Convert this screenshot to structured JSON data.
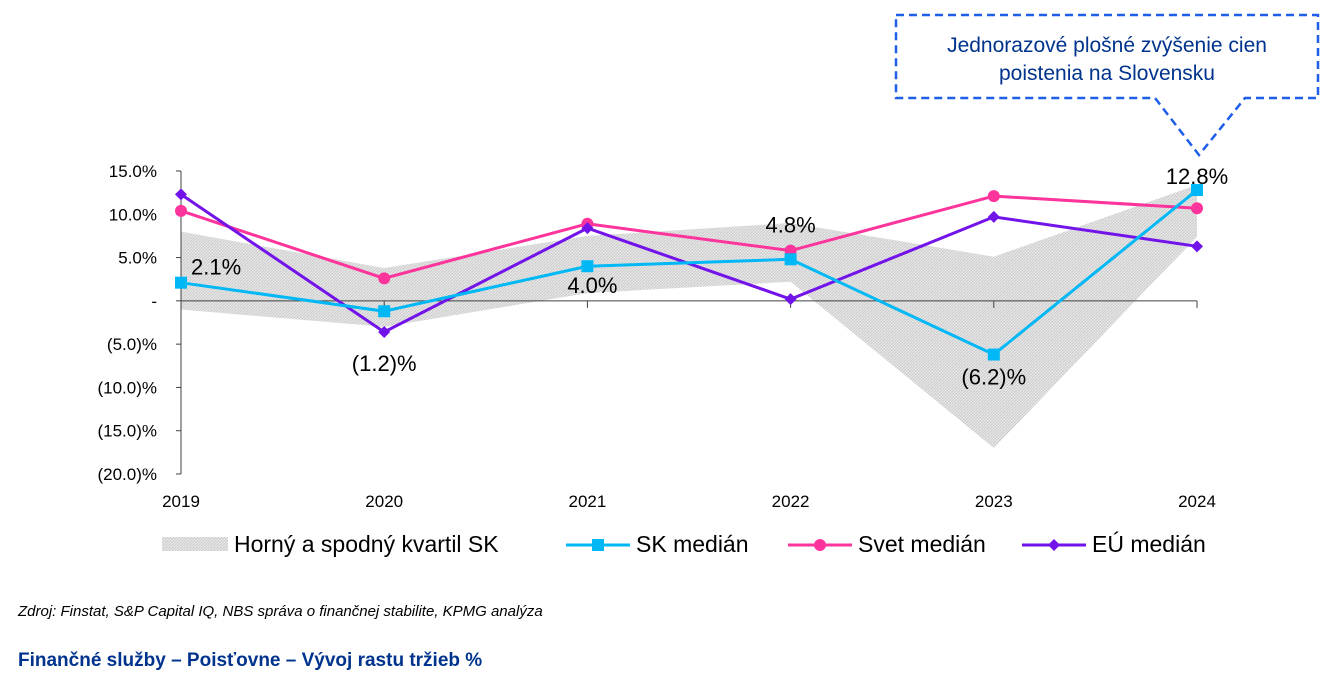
{
  "chart_data": {
    "type": "line",
    "categories": [
      "2019",
      "2020",
      "2021",
      "2022",
      "2023",
      "2024"
    ],
    "ylim": [
      -20,
      15
    ],
    "yticks": [
      15,
      10,
      5,
      0,
      -5,
      -10,
      -15,
      -20
    ],
    "ytick_labels": [
      "15.0%",
      "10.0%",
      "5.0%",
      "-",
      "(5.0)%",
      "(10.0)%",
      "(15.0)%",
      "(20.0)%"
    ],
    "band": {
      "name": "Horný a spodný kvartil SK",
      "upper": [
        8.0,
        3.8,
        7.5,
        9.0,
        5.1,
        13.4
      ],
      "lower": [
        -1.0,
        -3.0,
        0.9,
        2.2,
        -17.0,
        7.4
      ],
      "color": "#d9d9d9"
    },
    "series": [
      {
        "name": "SK medián",
        "values": [
          2.1,
          -1.2,
          4.0,
          4.8,
          -6.2,
          12.8
        ],
        "color": "#00B8F5",
        "marker": "square",
        "labels": [
          "2.1%",
          "(1.2)%",
          "4.0%",
          "4.8%",
          "(6.2)%",
          "12.8%"
        ]
      },
      {
        "name": "Svet medián",
        "values": [
          10.4,
          2.6,
          8.9,
          5.8,
          12.1,
          10.7
        ],
        "color": "#FD349C",
        "marker": "circle"
      },
      {
        "name": "EÚ medián",
        "values": [
          12.3,
          -3.6,
          8.4,
          0.2,
          9.7,
          6.3
        ],
        "color": "#7213EA",
        "marker": "diamond"
      }
    ],
    "annotation": "Jednorazové plošné zvýšenie cien poistenia na Slovensku",
    "annotation_lines": [
      "Jednorazové plošné zvýšenie cien",
      "poistenia na Slovensku"
    ],
    "legend_position": "bottom",
    "grid": false
  },
  "source": "Zdroj: Finstat, S&P Capital IQ, NBS správa o finančnej stabilite, KPMG analýza",
  "title": "Finančné služby – Poisťovne – Vývoj rastu tržieb %"
}
